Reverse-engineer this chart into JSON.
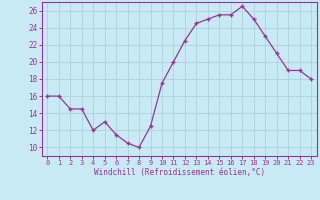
{
  "x": [
    0,
    1,
    2,
    3,
    4,
    5,
    6,
    7,
    8,
    9,
    10,
    11,
    12,
    13,
    14,
    15,
    16,
    17,
    18,
    19,
    20,
    21,
    22,
    23
  ],
  "y": [
    16,
    16,
    14.5,
    14.5,
    12,
    13,
    11.5,
    10.5,
    10,
    12.5,
    17.5,
    20,
    22.5,
    24.5,
    25,
    25.5,
    25.5,
    26.5,
    25,
    23,
    21,
    19,
    19,
    18
  ],
  "line_color": "#993399",
  "marker": "+",
  "xlabel": "Windchill (Refroidissement éolien,°C)",
  "ylim": [
    9,
    27
  ],
  "xlim": [
    -0.5,
    23.5
  ],
  "yticks": [
    10,
    12,
    14,
    16,
    18,
    20,
    22,
    24,
    26
  ],
  "xticks": [
    0,
    1,
    2,
    3,
    4,
    5,
    6,
    7,
    8,
    9,
    10,
    11,
    12,
    13,
    14,
    15,
    16,
    17,
    18,
    19,
    20,
    21,
    22,
    23
  ],
  "bg_color": "#c8eaf4",
  "grid_color": "#aaccdd",
  "line_grid_color": "#9bbccc",
  "xlabel_color": "#993399",
  "tick_color": "#993399",
  "spine_color": "#993399",
  "font_family": "monospace"
}
